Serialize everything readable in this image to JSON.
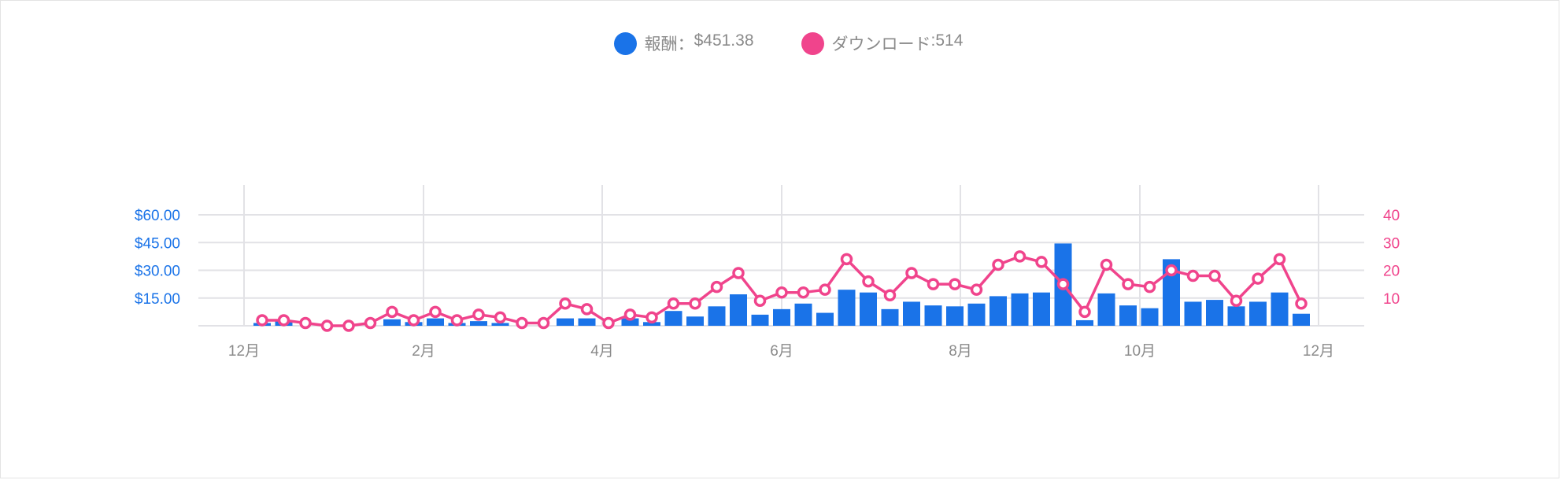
{
  "colors": {
    "earnings": "#1a73e8",
    "downloads": "#f0448c",
    "grid": "#e2e2e6",
    "axis_text": "#8a8a8a"
  },
  "legend": [
    {
      "icon": "blue-circle-icon",
      "label": "報酬",
      "separator": "：",
      "value": "$451.38",
      "color": "#1a73e8"
    },
    {
      "icon": "pink-circle-icon",
      "label": "ダウンロード",
      "separator": " : ",
      "value": "514",
      "color": "#f0448c"
    }
  ],
  "chart_data": {
    "type": "bar+line",
    "x_ticks": [
      "12月",
      "2月",
      "4月",
      "6月",
      "8月",
      "10月",
      "12月"
    ],
    "y_left_ticks": [
      "$15.00",
      "$30.00",
      "$45.00",
      "$60.00"
    ],
    "y_left_range": [
      0,
      60
    ],
    "y_right_ticks": [
      "10",
      "20",
      "30",
      "40"
    ],
    "y_right_range": [
      0,
      40
    ],
    "grid": true,
    "legend_position": "top-center",
    "series": [
      {
        "name": "報酬",
        "type": "bar",
        "axis": "left",
        "values": [
          1.5,
          2.5,
          0,
          0,
          0,
          0,
          3.5,
          2,
          4,
          1.5,
          2.5,
          1.5,
          0,
          0,
          4,
          4,
          0,
          4,
          2,
          8,
          5,
          10.5,
          17,
          6,
          9,
          12,
          7,
          19.5,
          18,
          9,
          13,
          11,
          10.5,
          12,
          16,
          17.5,
          18,
          44.5,
          3,
          17.5,
          11,
          9.5,
          36,
          13,
          14,
          10.5,
          13,
          18,
          6.5
        ]
      },
      {
        "name": "ダウンロード",
        "type": "line",
        "axis": "right",
        "values": [
          2,
          2,
          1,
          0,
          0,
          1,
          5,
          2,
          5,
          2,
          4,
          3,
          1,
          1,
          8,
          6,
          1,
          4,
          3,
          8,
          8,
          14,
          19,
          9,
          12,
          12,
          13,
          24,
          16,
          11,
          19,
          15,
          15,
          13,
          22,
          25,
          23,
          15,
          5,
          22,
          15,
          14,
          20,
          18,
          18,
          9,
          17,
          24,
          8
        ]
      }
    ]
  }
}
